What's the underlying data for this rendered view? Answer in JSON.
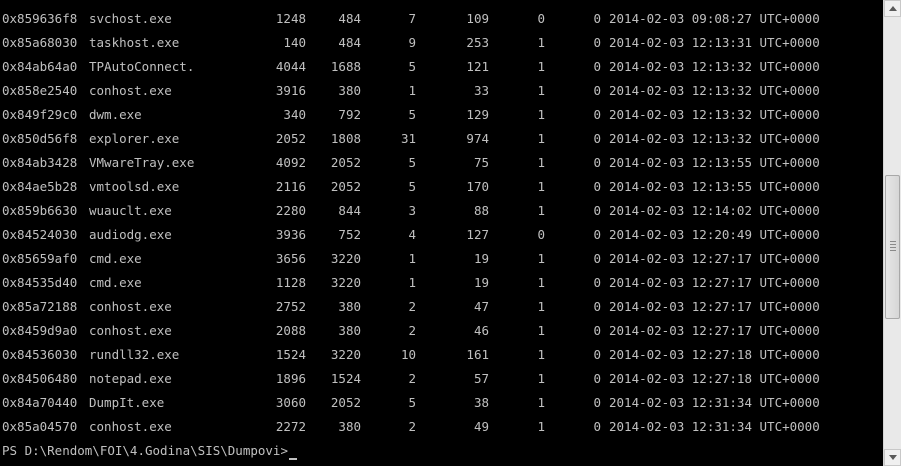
{
  "rows": [
    {
      "offset": "0x859636f8",
      "name": "svchost.exe",
      "pid": "1248",
      "ppid": "484",
      "thds": "7",
      "hnds": "109",
      "sess": "0",
      "wow64": "0",
      "start": "2014-02-03 09:08:27 UTC+0000"
    },
    {
      "offset": "0x85a68030",
      "name": "taskhost.exe",
      "pid": "140",
      "ppid": "484",
      "thds": "9",
      "hnds": "253",
      "sess": "1",
      "wow64": "0",
      "start": "2014-02-03 12:13:31 UTC+0000"
    },
    {
      "offset": "0x84ab64a0",
      "name": "TPAutoConnect.",
      "pid": "4044",
      "ppid": "1688",
      "thds": "5",
      "hnds": "121",
      "sess": "1",
      "wow64": "0",
      "start": "2014-02-03 12:13:32 UTC+0000"
    },
    {
      "offset": "0x858e2540",
      "name": "conhost.exe",
      "pid": "3916",
      "ppid": "380",
      "thds": "1",
      "hnds": "33",
      "sess": "1",
      "wow64": "0",
      "start": "2014-02-03 12:13:32 UTC+0000"
    },
    {
      "offset": "0x849f29c0",
      "name": "dwm.exe",
      "pid": "340",
      "ppid": "792",
      "thds": "5",
      "hnds": "129",
      "sess": "1",
      "wow64": "0",
      "start": "2014-02-03 12:13:32 UTC+0000"
    },
    {
      "offset": "0x850d56f8",
      "name": "explorer.exe",
      "pid": "2052",
      "ppid": "1808",
      "thds": "31",
      "hnds": "974",
      "sess": "1",
      "wow64": "0",
      "start": "2014-02-03 12:13:32 UTC+0000"
    },
    {
      "offset": "0x84ab3428",
      "name": "VMwareTray.exe",
      "pid": "4092",
      "ppid": "2052",
      "thds": "5",
      "hnds": "75",
      "sess": "1",
      "wow64": "0",
      "start": "2014-02-03 12:13:55 UTC+0000"
    },
    {
      "offset": "0x84ae5b28",
      "name": "vmtoolsd.exe",
      "pid": "2116",
      "ppid": "2052",
      "thds": "5",
      "hnds": "170",
      "sess": "1",
      "wow64": "0",
      "start": "2014-02-03 12:13:55 UTC+0000"
    },
    {
      "offset": "0x859b6630",
      "name": "wuauclt.exe",
      "pid": "2280",
      "ppid": "844",
      "thds": "3",
      "hnds": "88",
      "sess": "1",
      "wow64": "0",
      "start": "2014-02-03 12:14:02 UTC+0000"
    },
    {
      "offset": "0x84524030",
      "name": "audiodg.exe",
      "pid": "3936",
      "ppid": "752",
      "thds": "4",
      "hnds": "127",
      "sess": "0",
      "wow64": "0",
      "start": "2014-02-03 12:20:49 UTC+0000"
    },
    {
      "offset": "0x85659af0",
      "name": "cmd.exe",
      "pid": "3656",
      "ppid": "3220",
      "thds": "1",
      "hnds": "19",
      "sess": "1",
      "wow64": "0",
      "start": "2014-02-03 12:27:17 UTC+0000"
    },
    {
      "offset": "0x84535d40",
      "name": "cmd.exe",
      "pid": "1128",
      "ppid": "3220",
      "thds": "1",
      "hnds": "19",
      "sess": "1",
      "wow64": "0",
      "start": "2014-02-03 12:27:17 UTC+0000"
    },
    {
      "offset": "0x85a72188",
      "name": "conhost.exe",
      "pid": "2752",
      "ppid": "380",
      "thds": "2",
      "hnds": "47",
      "sess": "1",
      "wow64": "0",
      "start": "2014-02-03 12:27:17 UTC+0000"
    },
    {
      "offset": "0x8459d9a0",
      "name": "conhost.exe",
      "pid": "2088",
      "ppid": "380",
      "thds": "2",
      "hnds": "46",
      "sess": "1",
      "wow64": "0",
      "start": "2014-02-03 12:27:17 UTC+0000"
    },
    {
      "offset": "0x84536030",
      "name": "rundll32.exe",
      "pid": "1524",
      "ppid": "3220",
      "thds": "10",
      "hnds": "161",
      "sess": "1",
      "wow64": "0",
      "start": "2014-02-03 12:27:18 UTC+0000"
    },
    {
      "offset": "0x84506480",
      "name": "notepad.exe",
      "pid": "1896",
      "ppid": "1524",
      "thds": "2",
      "hnds": "57",
      "sess": "1",
      "wow64": "0",
      "start": "2014-02-03 12:27:18 UTC+0000"
    },
    {
      "offset": "0x84a70440",
      "name": "DumpIt.exe",
      "pid": "3060",
      "ppid": "2052",
      "thds": "5",
      "hnds": "38",
      "sess": "1",
      "wow64": "0",
      "start": "2014-02-03 12:31:34 UTC+0000"
    },
    {
      "offset": "0x85a04570",
      "name": "conhost.exe",
      "pid": "2272",
      "ppid": "380",
      "thds": "2",
      "hnds": "49",
      "sess": "1",
      "wow64": "0",
      "start": "2014-02-03 12:31:34 UTC+0000"
    }
  ],
  "prompt": "PS D:\\Rendom\\FOI\\4.Godina\\SIS\\Dumpovi>",
  "scrollbar": {
    "up_icon": "arrow-up-icon",
    "down_icon": "arrow-down-icon",
    "thumb_position_fraction": 0.55
  },
  "colors": {
    "background": "#000000",
    "text": "#c0c0c0"
  }
}
